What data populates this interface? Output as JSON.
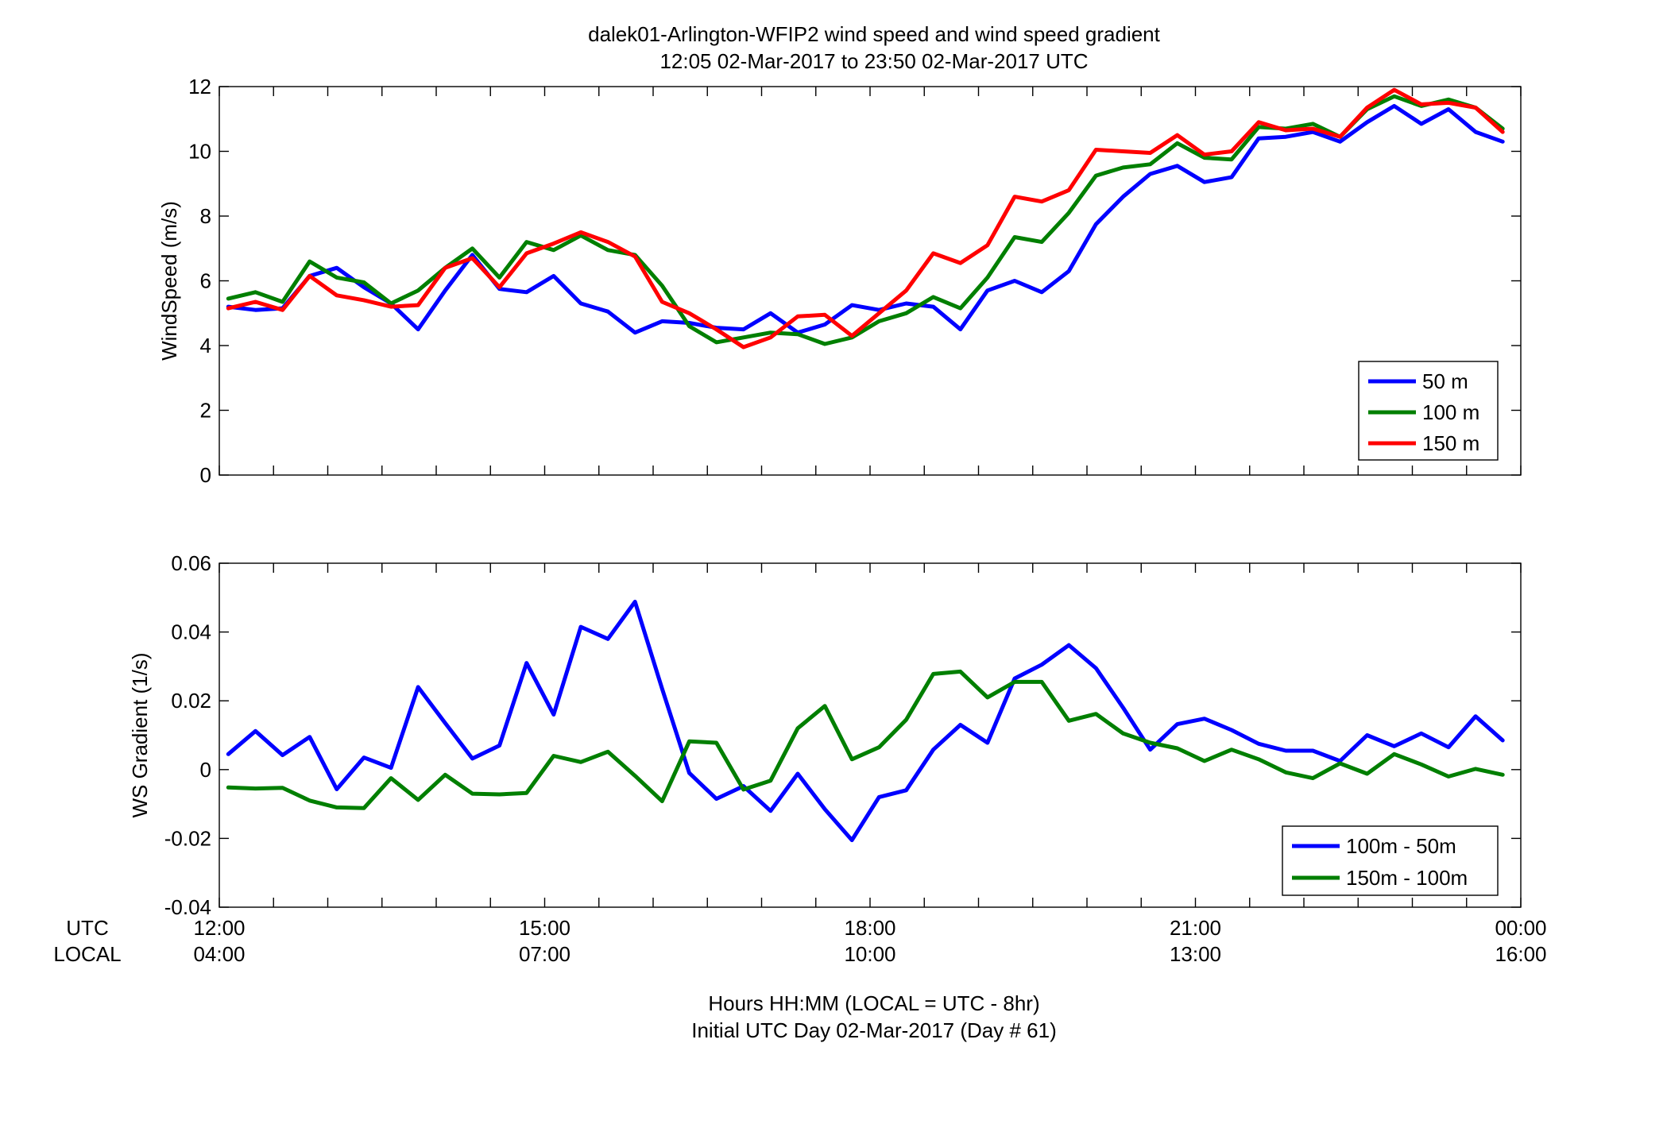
{
  "title": {
    "line1": "dalek01-Arlington-WFIP2  wind speed and wind speed gradient",
    "line2": "12:05 02-Mar-2017 to 23:50 02-Mar-2017  UTC"
  },
  "time_axis": {
    "row_label_utc": "UTC",
    "row_label_local": "LOCAL",
    "utc_ticks": [
      "12:00",
      "15:00",
      "18:00",
      "21:00",
      "00:00"
    ],
    "local_ticks": [
      "04:00",
      "07:00",
      "10:00",
      "13:00",
      "16:00"
    ],
    "xlabel_line1": "Hours HH:MM  (LOCAL = UTC - 8hr)",
    "xlabel_line2": "Initial UTC Day 02-Mar-2017 (Day # 61)"
  },
  "colors": {
    "blue": "#0000ff",
    "green": "#007f00",
    "red": "#ff0000"
  },
  "chart_data": [
    {
      "type": "line",
      "ylabel": "WindSpeed (m/s)",
      "xlim": [
        12,
        24
      ],
      "ylim": [
        0,
        12
      ],
      "yticks": [
        0,
        2,
        4,
        6,
        8,
        10,
        12
      ],
      "yticklabels": [
        "0",
        "2",
        "4",
        "6",
        "8",
        "10",
        "12"
      ],
      "xticks_utc_hours": [
        12,
        12.5,
        13,
        13.5,
        14,
        14.5,
        15,
        15.5,
        16,
        16.5,
        17,
        17.5,
        18,
        18.5,
        19,
        19.5,
        20,
        20.5,
        21,
        21.5,
        22,
        22.5,
        23,
        23.5,
        24
      ],
      "legend_position": "bottom-right",
      "x": [
        12.083,
        12.333,
        12.583,
        12.833,
        13.083,
        13.333,
        13.583,
        13.833,
        14.083,
        14.333,
        14.583,
        14.833,
        15.083,
        15.333,
        15.583,
        15.833,
        16.083,
        16.333,
        16.583,
        16.833,
        17.083,
        17.333,
        17.583,
        17.833,
        18.083,
        18.333,
        18.583,
        18.833,
        19.083,
        19.333,
        19.583,
        19.833,
        20.083,
        20.333,
        20.583,
        20.833,
        21.083,
        21.333,
        21.583,
        21.833,
        22.083,
        22.333,
        22.583,
        22.833,
        23.083,
        23.333,
        23.583,
        23.833
      ],
      "series": [
        {
          "name": "50 m",
          "color": "#0000ff",
          "values": [
            5.2,
            5.1,
            5.15,
            6.15,
            6.4,
            5.8,
            5.3,
            4.5,
            5.7,
            6.8,
            5.75,
            5.65,
            6.15,
            5.3,
            5.05,
            4.4,
            4.75,
            4.7,
            4.55,
            4.5,
            5.0,
            4.4,
            4.65,
            5.25,
            5.1,
            5.3,
            5.2,
            4.5,
            5.7,
            6.0,
            5.65,
            6.3,
            7.75,
            8.6,
            9.3,
            9.55,
            9.05,
            9.2,
            10.4,
            10.45,
            10.6,
            10.3,
            10.9,
            11.4,
            10.85,
            11.3,
            10.6,
            10.3
          ]
        },
        {
          "name": "100 m",
          "color": "#007f00",
          "values": [
            5.45,
            5.65,
            5.35,
            6.6,
            6.1,
            5.95,
            5.3,
            5.7,
            6.4,
            7.0,
            6.1,
            7.2,
            6.95,
            7.4,
            6.95,
            6.8,
            5.85,
            4.6,
            4.1,
            4.25,
            4.4,
            4.35,
            4.05,
            4.25,
            4.75,
            5.0,
            5.5,
            5.15,
            6.1,
            7.35,
            7.2,
            8.1,
            9.25,
            9.5,
            9.6,
            10.25,
            9.8,
            9.75,
            10.75,
            10.7,
            10.85,
            10.45,
            11.3,
            11.7,
            11.4,
            11.6,
            11.35,
            10.7
          ]
        },
        {
          "name": "150 m",
          "color": "#ff0000",
          "values": [
            5.15,
            5.35,
            5.1,
            6.15,
            5.55,
            5.4,
            5.2,
            5.25,
            6.4,
            6.7,
            5.8,
            6.85,
            7.15,
            7.5,
            7.2,
            6.75,
            5.35,
            5.0,
            4.5,
            3.95,
            4.25,
            4.9,
            4.95,
            4.3,
            5.0,
            5.7,
            6.85,
            6.55,
            7.1,
            8.6,
            8.45,
            8.8,
            10.05,
            10.0,
            9.95,
            10.5,
            9.9,
            10.0,
            10.9,
            10.65,
            10.7,
            10.45,
            11.35,
            11.9,
            11.45,
            11.5,
            11.35,
            10.6
          ]
        }
      ]
    },
    {
      "type": "line",
      "ylabel": "WS Gradient (1/s)",
      "xlim": [
        12,
        24
      ],
      "ylim": [
        -0.04,
        0.06
      ],
      "yticks": [
        -0.04,
        -0.02,
        0,
        0.02,
        0.04,
        0.06
      ],
      "yticklabels": [
        "-0.04",
        "-0.02",
        "0",
        "0.02",
        "0.04",
        "0.06"
      ],
      "xticks_utc_hours": [
        12,
        12.5,
        13,
        13.5,
        14,
        14.5,
        15,
        15.5,
        16,
        16.5,
        17,
        17.5,
        18,
        18.5,
        19,
        19.5,
        20,
        20.5,
        21,
        21.5,
        22,
        22.5,
        23,
        23.5,
        24
      ],
      "legend_position": "bottom-right",
      "x": [
        12.083,
        12.333,
        12.583,
        12.833,
        13.083,
        13.333,
        13.583,
        13.833,
        14.083,
        14.333,
        14.583,
        14.833,
        15.083,
        15.333,
        15.583,
        15.833,
        16.083,
        16.333,
        16.583,
        16.833,
        17.083,
        17.333,
        17.583,
        17.833,
        18.083,
        18.333,
        18.583,
        18.833,
        19.083,
        19.333,
        19.583,
        19.833,
        20.083,
        20.333,
        20.583,
        20.833,
        21.083,
        21.333,
        21.583,
        21.833,
        22.083,
        22.333,
        22.583,
        22.833,
        23.083,
        23.333,
        23.583,
        23.833
      ],
      "series": [
        {
          "name": "100m - 50m",
          "color": "#0000ff",
          "values": [
            0.0045,
            0.0112,
            0.0042,
            0.0095,
            -0.0057,
            0.0035,
            0.0005,
            0.024,
            0.0135,
            0.0032,
            0.007,
            0.031,
            0.016,
            0.0415,
            0.038,
            0.0488,
            0.0235,
            -0.001,
            -0.0085,
            -0.0048,
            -0.012,
            -0.0012,
            -0.0115,
            -0.0205,
            -0.008,
            -0.006,
            0.0058,
            0.013,
            0.0078,
            0.0265,
            0.0305,
            0.0362,
            0.0295,
            0.018,
            0.0058,
            0.0132,
            0.0148,
            0.0115,
            0.0075,
            0.0055,
            0.0055,
            0.0025,
            0.01,
            0.0068,
            0.0105,
            0.0065,
            0.0155,
            0.0085
          ]
        },
        {
          "name": "150m - 100m",
          "color": "#007f00",
          "values": [
            -0.0052,
            -0.0055,
            -0.0053,
            -0.009,
            -0.011,
            -0.0112,
            -0.0025,
            -0.0088,
            -0.0015,
            -0.007,
            -0.0072,
            -0.0068,
            0.004,
            0.0022,
            0.0052,
            -0.0018,
            -0.0092,
            0.0082,
            0.0078,
            -0.0058,
            -0.0032,
            0.012,
            0.0185,
            0.003,
            0.0065,
            0.0145,
            0.0278,
            0.0285,
            0.021,
            0.0255,
            0.0255,
            0.0142,
            0.0162,
            0.0105,
            0.0078,
            0.0062,
            0.0025,
            0.0058,
            0.003,
            -0.0008,
            -0.0025,
            0.0018,
            -0.0012,
            0.0045,
            0.0015,
            -0.002,
            0.0002,
            -0.0015
          ]
        }
      ]
    }
  ]
}
